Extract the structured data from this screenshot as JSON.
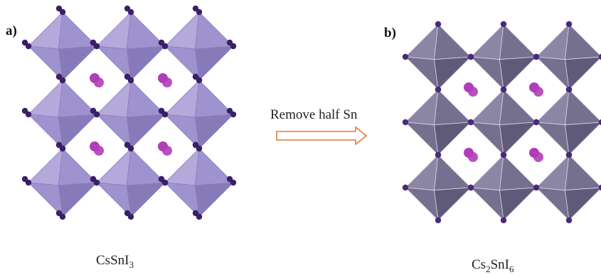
{
  "panels": [
    {
      "label": "a)",
      "formula": {
        "main": "CsSnI",
        "sub": "3",
        "after": ""
      },
      "structure": "corner-sharing octahedra, every site occupied",
      "colors": {
        "face_light": "#b5a9dc",
        "face_mid": "#9f93cf",
        "face_dark": "#877ab9",
        "edge": "#8b7fbd",
        "iodide": "#3b1f68",
        "cesium": "#b13db9"
      }
    },
    {
      "label": "b)",
      "formula": {
        "main": "Cs",
        "sub": "2",
        "after": "SnI",
        "sub2": "6"
      },
      "structure": "isolated octahedra, half Sn removed",
      "colors": {
        "face_light": "#8c86a6",
        "face_mid": "#75708f",
        "face_dark": "#5f5a7a",
        "edge": "#d8d6e4",
        "iodide": "#4a2a7a",
        "cesium": "#b13db9"
      }
    }
  ],
  "arrow": {
    "text": "Remove half Sn",
    "color": "#e8793a"
  }
}
